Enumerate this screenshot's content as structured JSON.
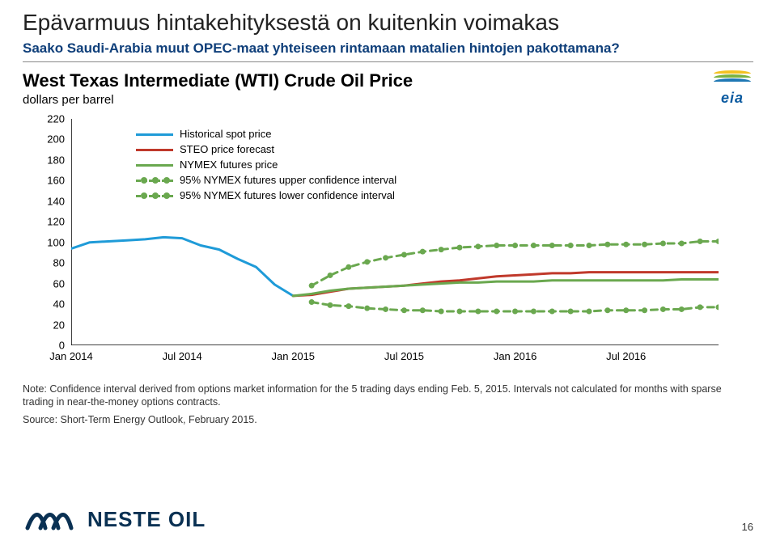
{
  "slide": {
    "title": "Epävarmuus hintakehityksestä on kuitenkin voimakas",
    "subtitle": "Saako Saudi-Arabia muut OPEC-maat yhteiseen rintamaan matalien hintojen pakottamana?",
    "page_number": "16"
  },
  "logo": {
    "brand": "NESTE OIL",
    "mark_color": "#0a3153",
    "text_color": "#0a3153"
  },
  "eia_logo": {
    "text": "eia",
    "arc_colors": [
      "#f3c221",
      "#7bb241",
      "#1f78b4"
    ]
  },
  "chart": {
    "title": "West Texas Intermediate (WTI) Crude Oil Price",
    "subtitle": "dollars per barrel",
    "note": "Note: Confidence interval derived from options market information for the 5 trading days ending Feb. 5, 2015. Intervals not calculated for months with sparse trading in near-the-money options contracts.",
    "source": "Source: Short-Term Energy Outlook, February 2015.",
    "background_color": "#ffffff",
    "axis_color": "#000000",
    "ylim": [
      0,
      220
    ],
    "yticks": [
      0,
      20,
      40,
      60,
      80,
      100,
      120,
      140,
      160,
      180,
      200,
      220
    ],
    "xlim": [
      0,
      35
    ],
    "xticks": [
      {
        "pos": 0,
        "label": "Jan 2014"
      },
      {
        "pos": 6,
        "label": "Jul 2014"
      },
      {
        "pos": 12,
        "label": "Jan 2015"
      },
      {
        "pos": 18,
        "label": "Jul 2015"
      },
      {
        "pos": 24,
        "label": "Jan 2016"
      },
      {
        "pos": 30,
        "label": "Jul 2016"
      }
    ],
    "legend": [
      {
        "key": "historical",
        "label": "Historical spot price",
        "style": "line",
        "color": "#1f9bd8"
      },
      {
        "key": "steo",
        "label": "STEO price forecast",
        "style": "line",
        "color": "#c0392b"
      },
      {
        "key": "nymex",
        "label": "NYMEX futures price",
        "style": "line",
        "color": "#6aa84f"
      },
      {
        "key": "upper",
        "label": "95% NYMEX futures upper confidence interval",
        "style": "dash-dot",
        "color": "#6aa84f"
      },
      {
        "key": "lower",
        "label": "95% NYMEX futures lower confidence interval",
        "style": "dash-dot",
        "color": "#6aa84f"
      }
    ],
    "series": {
      "historical": {
        "color": "#1f9bd8",
        "width": 3,
        "style": "solid",
        "points": [
          [
            0,
            94
          ],
          [
            1,
            100
          ],
          [
            2,
            101
          ],
          [
            3,
            102
          ],
          [
            4,
            103
          ],
          [
            5,
            105
          ],
          [
            6,
            104
          ],
          [
            7,
            97
          ],
          [
            8,
            93
          ],
          [
            9,
            84
          ],
          [
            10,
            76
          ],
          [
            11,
            59
          ],
          [
            12,
            48
          ]
        ]
      },
      "steo": {
        "color": "#c0392b",
        "width": 3,
        "style": "solid",
        "points": [
          [
            12,
            48
          ],
          [
            13,
            49
          ],
          [
            14,
            52
          ],
          [
            15,
            55
          ],
          [
            16,
            56
          ],
          [
            17,
            57
          ],
          [
            18,
            58
          ],
          [
            19,
            60
          ],
          [
            20,
            62
          ],
          [
            21,
            63
          ],
          [
            22,
            65
          ],
          [
            23,
            67
          ],
          [
            24,
            68
          ],
          [
            25,
            69
          ],
          [
            26,
            70
          ],
          [
            27,
            70
          ],
          [
            28,
            71
          ],
          [
            29,
            71
          ],
          [
            30,
            71
          ],
          [
            31,
            71
          ],
          [
            32,
            71
          ],
          [
            33,
            71
          ],
          [
            34,
            71
          ],
          [
            35,
            71
          ]
        ]
      },
      "nymex": {
        "color": "#6aa84f",
        "width": 3,
        "style": "solid",
        "points": [
          [
            12,
            48
          ],
          [
            13,
            50
          ],
          [
            14,
            53
          ],
          [
            15,
            55
          ],
          [
            16,
            56
          ],
          [
            17,
            57
          ],
          [
            18,
            58
          ],
          [
            19,
            59
          ],
          [
            20,
            60
          ],
          [
            21,
            61
          ],
          [
            22,
            61
          ],
          [
            23,
            62
          ],
          [
            24,
            62
          ],
          [
            25,
            62
          ],
          [
            26,
            63
          ],
          [
            27,
            63
          ],
          [
            28,
            63
          ],
          [
            29,
            63
          ],
          [
            30,
            63
          ],
          [
            31,
            63
          ],
          [
            32,
            63
          ],
          [
            33,
            64
          ],
          [
            34,
            64
          ],
          [
            35,
            64
          ]
        ]
      },
      "upper": {
        "color": "#6aa84f",
        "width": 3,
        "style": "dash-dot",
        "marker_r": 3.5,
        "points": [
          [
            13,
            58
          ],
          [
            14,
            68
          ],
          [
            15,
            76
          ],
          [
            16,
            81
          ],
          [
            17,
            85
          ],
          [
            18,
            88
          ],
          [
            19,
            91
          ],
          [
            20,
            93
          ],
          [
            21,
            95
          ],
          [
            22,
            96
          ],
          [
            23,
            97
          ],
          [
            24,
            97
          ],
          [
            25,
            97
          ],
          [
            26,
            97
          ],
          [
            27,
            97
          ],
          [
            28,
            97
          ],
          [
            29,
            98
          ],
          [
            30,
            98
          ],
          [
            31,
            98
          ],
          [
            32,
            99
          ],
          [
            33,
            99
          ],
          [
            34,
            101
          ],
          [
            35,
            101
          ]
        ]
      },
      "lower": {
        "color": "#6aa84f",
        "width": 3,
        "style": "dash-dot",
        "marker_r": 3.5,
        "points": [
          [
            13,
            42
          ],
          [
            14,
            39
          ],
          [
            15,
            38
          ],
          [
            16,
            36
          ],
          [
            17,
            35
          ],
          [
            18,
            34
          ],
          [
            19,
            34
          ],
          [
            20,
            33
          ],
          [
            21,
            33
          ],
          [
            22,
            33
          ],
          [
            23,
            33
          ],
          [
            24,
            33
          ],
          [
            25,
            33
          ],
          [
            26,
            33
          ],
          [
            27,
            33
          ],
          [
            28,
            33
          ],
          [
            29,
            34
          ],
          [
            30,
            34
          ],
          [
            31,
            34
          ],
          [
            32,
            35
          ],
          [
            33,
            35
          ],
          [
            34,
            37
          ],
          [
            35,
            37
          ]
        ]
      }
    }
  }
}
